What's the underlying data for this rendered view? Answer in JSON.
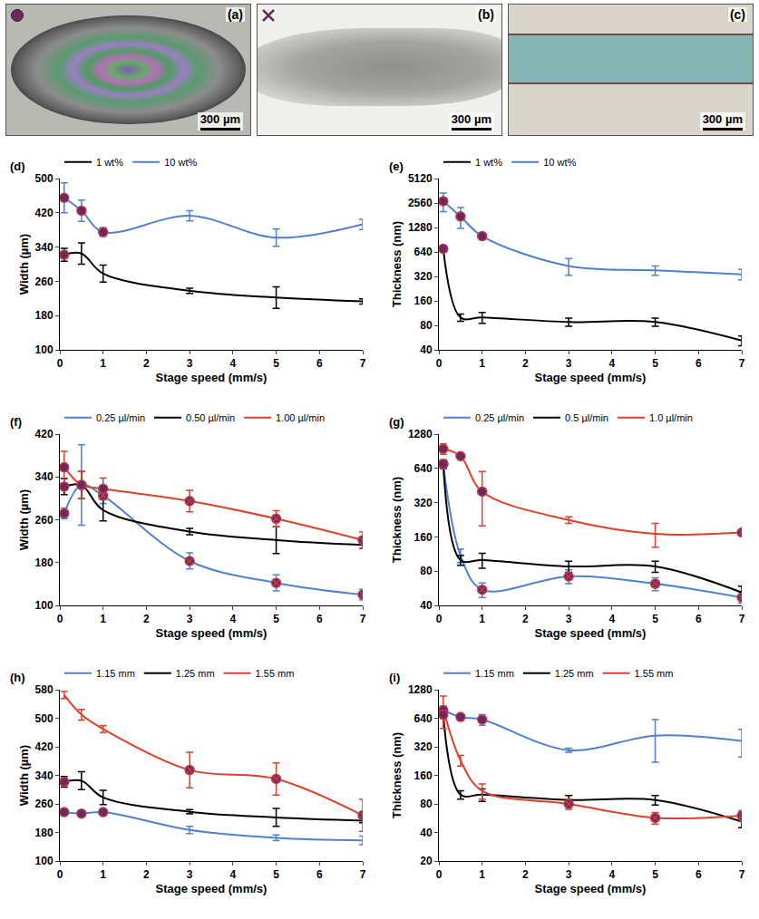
{
  "images": [
    {
      "label": "(a)",
      "scale_bar": "300 µm",
      "marker": "circle"
    },
    {
      "label": "(b)",
      "scale_bar": "300 µm",
      "marker": "x"
    },
    {
      "label": "(c)",
      "scale_bar": "300 µm",
      "marker": null
    }
  ],
  "chart_data": [
    {
      "type": "line",
      "panel": "(d)",
      "xlabel": "Stage speed (mm/s)",
      "ylabel": "Width (µm)",
      "x": [
        0.1,
        0.5,
        1,
        3,
        5,
        7
      ],
      "xlim": [
        0,
        7
      ],
      "xticks": [
        0,
        1,
        2,
        3,
        4,
        5,
        6,
        7
      ],
      "ylim": [
        100,
        500
      ],
      "yticks": [
        100,
        180,
        260,
        340,
        420,
        500
      ],
      "grid": false,
      "legend": "top",
      "series": [
        {
          "name": "1 wt%",
          "color": "#000000",
          "values": [
            322,
            325,
            278,
            238,
            222,
            213
          ],
          "error": [
            15,
            25,
            20,
            6,
            25,
            6
          ],
          "markers": [
            "circle",
            null,
            null,
            null,
            null,
            null
          ]
        },
        {
          "name": "10 wt%",
          "color": "#4f81d0",
          "values": [
            455,
            425,
            375,
            413,
            362,
            393
          ],
          "error": [
            35,
            25,
            10,
            12,
            20,
            12
          ],
          "markers": [
            "circle",
            "circle",
            "circle",
            null,
            null,
            null
          ]
        }
      ]
    },
    {
      "type": "line",
      "panel": "(e)",
      "xlabel": "Stage speed (mm/s)",
      "ylabel": "Thickness (nm)",
      "log": "y",
      "x": [
        0.1,
        0.5,
        1,
        3,
        5,
        7
      ],
      "xlim": [
        0,
        7
      ],
      "xticks": [
        0,
        1,
        2,
        3,
        4,
        5,
        6,
        7
      ],
      "ylim": [
        40,
        5120
      ],
      "yticks": [
        40,
        80,
        160,
        320,
        640,
        1280,
        2560,
        5120
      ],
      "grid": false,
      "legend": "top",
      "series": [
        {
          "name": "1 wt%",
          "color": "#000000",
          "values": [
            700,
            100,
            100,
            88,
            88,
            52
          ],
          "error": [
            60,
            10,
            15,
            10,
            10,
            7
          ],
          "markers": [
            "circle",
            null,
            null,
            null,
            null,
            null
          ]
        },
        {
          "name": "10 wt%",
          "color": "#4f81d0",
          "values": [
            2700,
            1750,
            1000,
            430,
            380,
            340
          ],
          "error": [
            700,
            500,
            80,
            100,
            50,
            50
          ],
          "markers": [
            "circle",
            "circle",
            "circle",
            null,
            null,
            null
          ]
        }
      ]
    },
    {
      "type": "line",
      "panel": "(f)",
      "xlabel": "Stage speed (mm/s)",
      "ylabel": "Width (µm)",
      "x": [
        0.1,
        0.5,
        1,
        3,
        5,
        7
      ],
      "xlim": [
        0,
        7
      ],
      "xticks": [
        0,
        1,
        2,
        3,
        4,
        5,
        6,
        7
      ],
      "ylim": [
        100,
        420
      ],
      "yticks": [
        100,
        180,
        260,
        340,
        420
      ],
      "grid": false,
      "legend": "top",
      "series": [
        {
          "name": "0.25 µl/min",
          "color": "#4f81d0",
          "values": [
            272,
            325,
            305,
            183,
            142,
            120
          ],
          "error": [
            10,
            75,
            15,
            15,
            15,
            10
          ],
          "markers": [
            "circle",
            "circle",
            "x",
            "x",
            "x",
            "x"
          ]
        },
        {
          "name": "0.50 µl/min",
          "color": "#000000",
          "values": [
            322,
            325,
            278,
            238,
            222,
            213
          ],
          "error": [
            15,
            25,
            20,
            6,
            25,
            6
          ],
          "markers": [
            "circle",
            null,
            null,
            null,
            null,
            null
          ]
        },
        {
          "name": "1.00 µl/min",
          "color": "#e0402a",
          "values": [
            358,
            325,
            318,
            295,
            262,
            222
          ],
          "error": [
            30,
            25,
            20,
            20,
            15,
            15
          ],
          "markers": [
            "circle",
            "circle",
            "circle",
            "x",
            "x",
            "x"
          ]
        }
      ]
    },
    {
      "type": "line",
      "panel": "(g)",
      "xlabel": "Stage speed (mm/s)",
      "ylabel": "Thickness (nm)",
      "log": "y",
      "x": [
        0.1,
        0.5,
        1,
        3,
        5,
        7
      ],
      "xlim": [
        0,
        7
      ],
      "xticks": [
        0,
        1,
        2,
        3,
        4,
        5,
        6,
        7
      ],
      "ylim": [
        40,
        1280
      ],
      "yticks": [
        40,
        80,
        160,
        320,
        640,
        1280
      ],
      "grid": false,
      "legend": "top",
      "series": [
        {
          "name": "0.25 µl/min",
          "color": "#4f81d0",
          "values": [
            700,
            110,
            55,
            72,
            62,
            47
          ],
          "error": [
            60,
            15,
            8,
            10,
            8,
            5
          ],
          "markers": [
            "circle",
            null,
            "x",
            "x",
            "x",
            "x"
          ]
        },
        {
          "name": "0.5 µl/min",
          "color": "#000000",
          "values": [
            700,
            100,
            100,
            88,
            88,
            52
          ],
          "error": [
            60,
            10,
            15,
            10,
            10,
            7
          ],
          "markers": [
            "circle",
            null,
            null,
            null,
            null,
            null
          ]
        },
        {
          "name": "1.0 µl/min",
          "color": "#e0402a",
          "values": [
            950,
            820,
            400,
            225,
            170,
            175
          ],
          "error": [
            100,
            40,
            200,
            15,
            40,
            10
          ],
          "markers": [
            "circle",
            "circle",
            "circle",
            null,
            null,
            "x"
          ]
        }
      ]
    },
    {
      "type": "line",
      "panel": "(h)",
      "xlabel": "Stage speed (mm/s)",
      "ylabel": "Width (µm)",
      "x": [
        0.1,
        0.5,
        1,
        3,
        5,
        7
      ],
      "xlim": [
        0,
        7
      ],
      "xticks": [
        0,
        1,
        2,
        3,
        4,
        5,
        6,
        7
      ],
      "ylim": [
        100,
        580
      ],
      "yticks": [
        100,
        180,
        260,
        340,
        420,
        500,
        580
      ],
      "grid": false,
      "legend": "top",
      "series": [
        {
          "name": "1.15 mm",
          "color": "#4f81d0",
          "values": [
            237,
            233,
            237,
            187,
            165,
            158
          ],
          "error": [
            8,
            8,
            8,
            10,
            8,
            12
          ],
          "markers": [
            "circle",
            "circle",
            "circle",
            null,
            null,
            null
          ]
        },
        {
          "name": "1.25 mm",
          "color": "#000000",
          "values": [
            322,
            325,
            278,
            238,
            222,
            213
          ],
          "error": [
            15,
            25,
            20,
            6,
            25,
            6
          ],
          "markers": [
            "circle",
            null,
            null,
            null,
            null,
            null
          ]
        },
        {
          "name": "1.55 mm",
          "color": "#e0402a",
          "values": [
            565,
            510,
            470,
            355,
            330,
            228
          ],
          "error": [
            10,
            15,
            10,
            50,
            45,
            45
          ],
          "markers": [
            null,
            null,
            null,
            "x",
            "x",
            "x"
          ]
        }
      ]
    },
    {
      "type": "line",
      "panel": "(i)",
      "xlabel": "Stage speed (mm/s)",
      "ylabel": "Thickness (nm)",
      "log": "y",
      "x": [
        0.1,
        0.5,
        1,
        3,
        5,
        7
      ],
      "xlim": [
        0,
        7
      ],
      "xticks": [
        0,
        1,
        2,
        3,
        4,
        5,
        6,
        7
      ],
      "ylim": [
        20,
        1280
      ],
      "yticks": [
        20,
        40,
        80,
        160,
        320,
        640,
        1280
      ],
      "grid": false,
      "legend": "top",
      "series": [
        {
          "name": "1.15 mm",
          "color": "#4f81d0",
          "values": [
            780,
            660,
            620,
            295,
            420,
            370
          ],
          "error": [
            80,
            40,
            80,
            15,
            200,
            120
          ],
          "markers": [
            "circle",
            "circle",
            "circle",
            null,
            null,
            null
          ]
        },
        {
          "name": "1.25 mm",
          "color": "#000000",
          "values": [
            700,
            100,
            100,
            88,
            88,
            52
          ],
          "error": [
            60,
            10,
            15,
            10,
            10,
            7
          ],
          "markers": [
            "circle",
            null,
            null,
            null,
            null,
            null
          ]
        },
        {
          "name": "1.55 mm",
          "color": "#e0402a",
          "values": [
            800,
            230,
            110,
            80,
            57,
            60
          ],
          "error": [
            300,
            30,
            20,
            10,
            8,
            8
          ],
          "markers": [
            null,
            null,
            null,
            "x",
            "x",
            "x"
          ]
        }
      ]
    }
  ]
}
